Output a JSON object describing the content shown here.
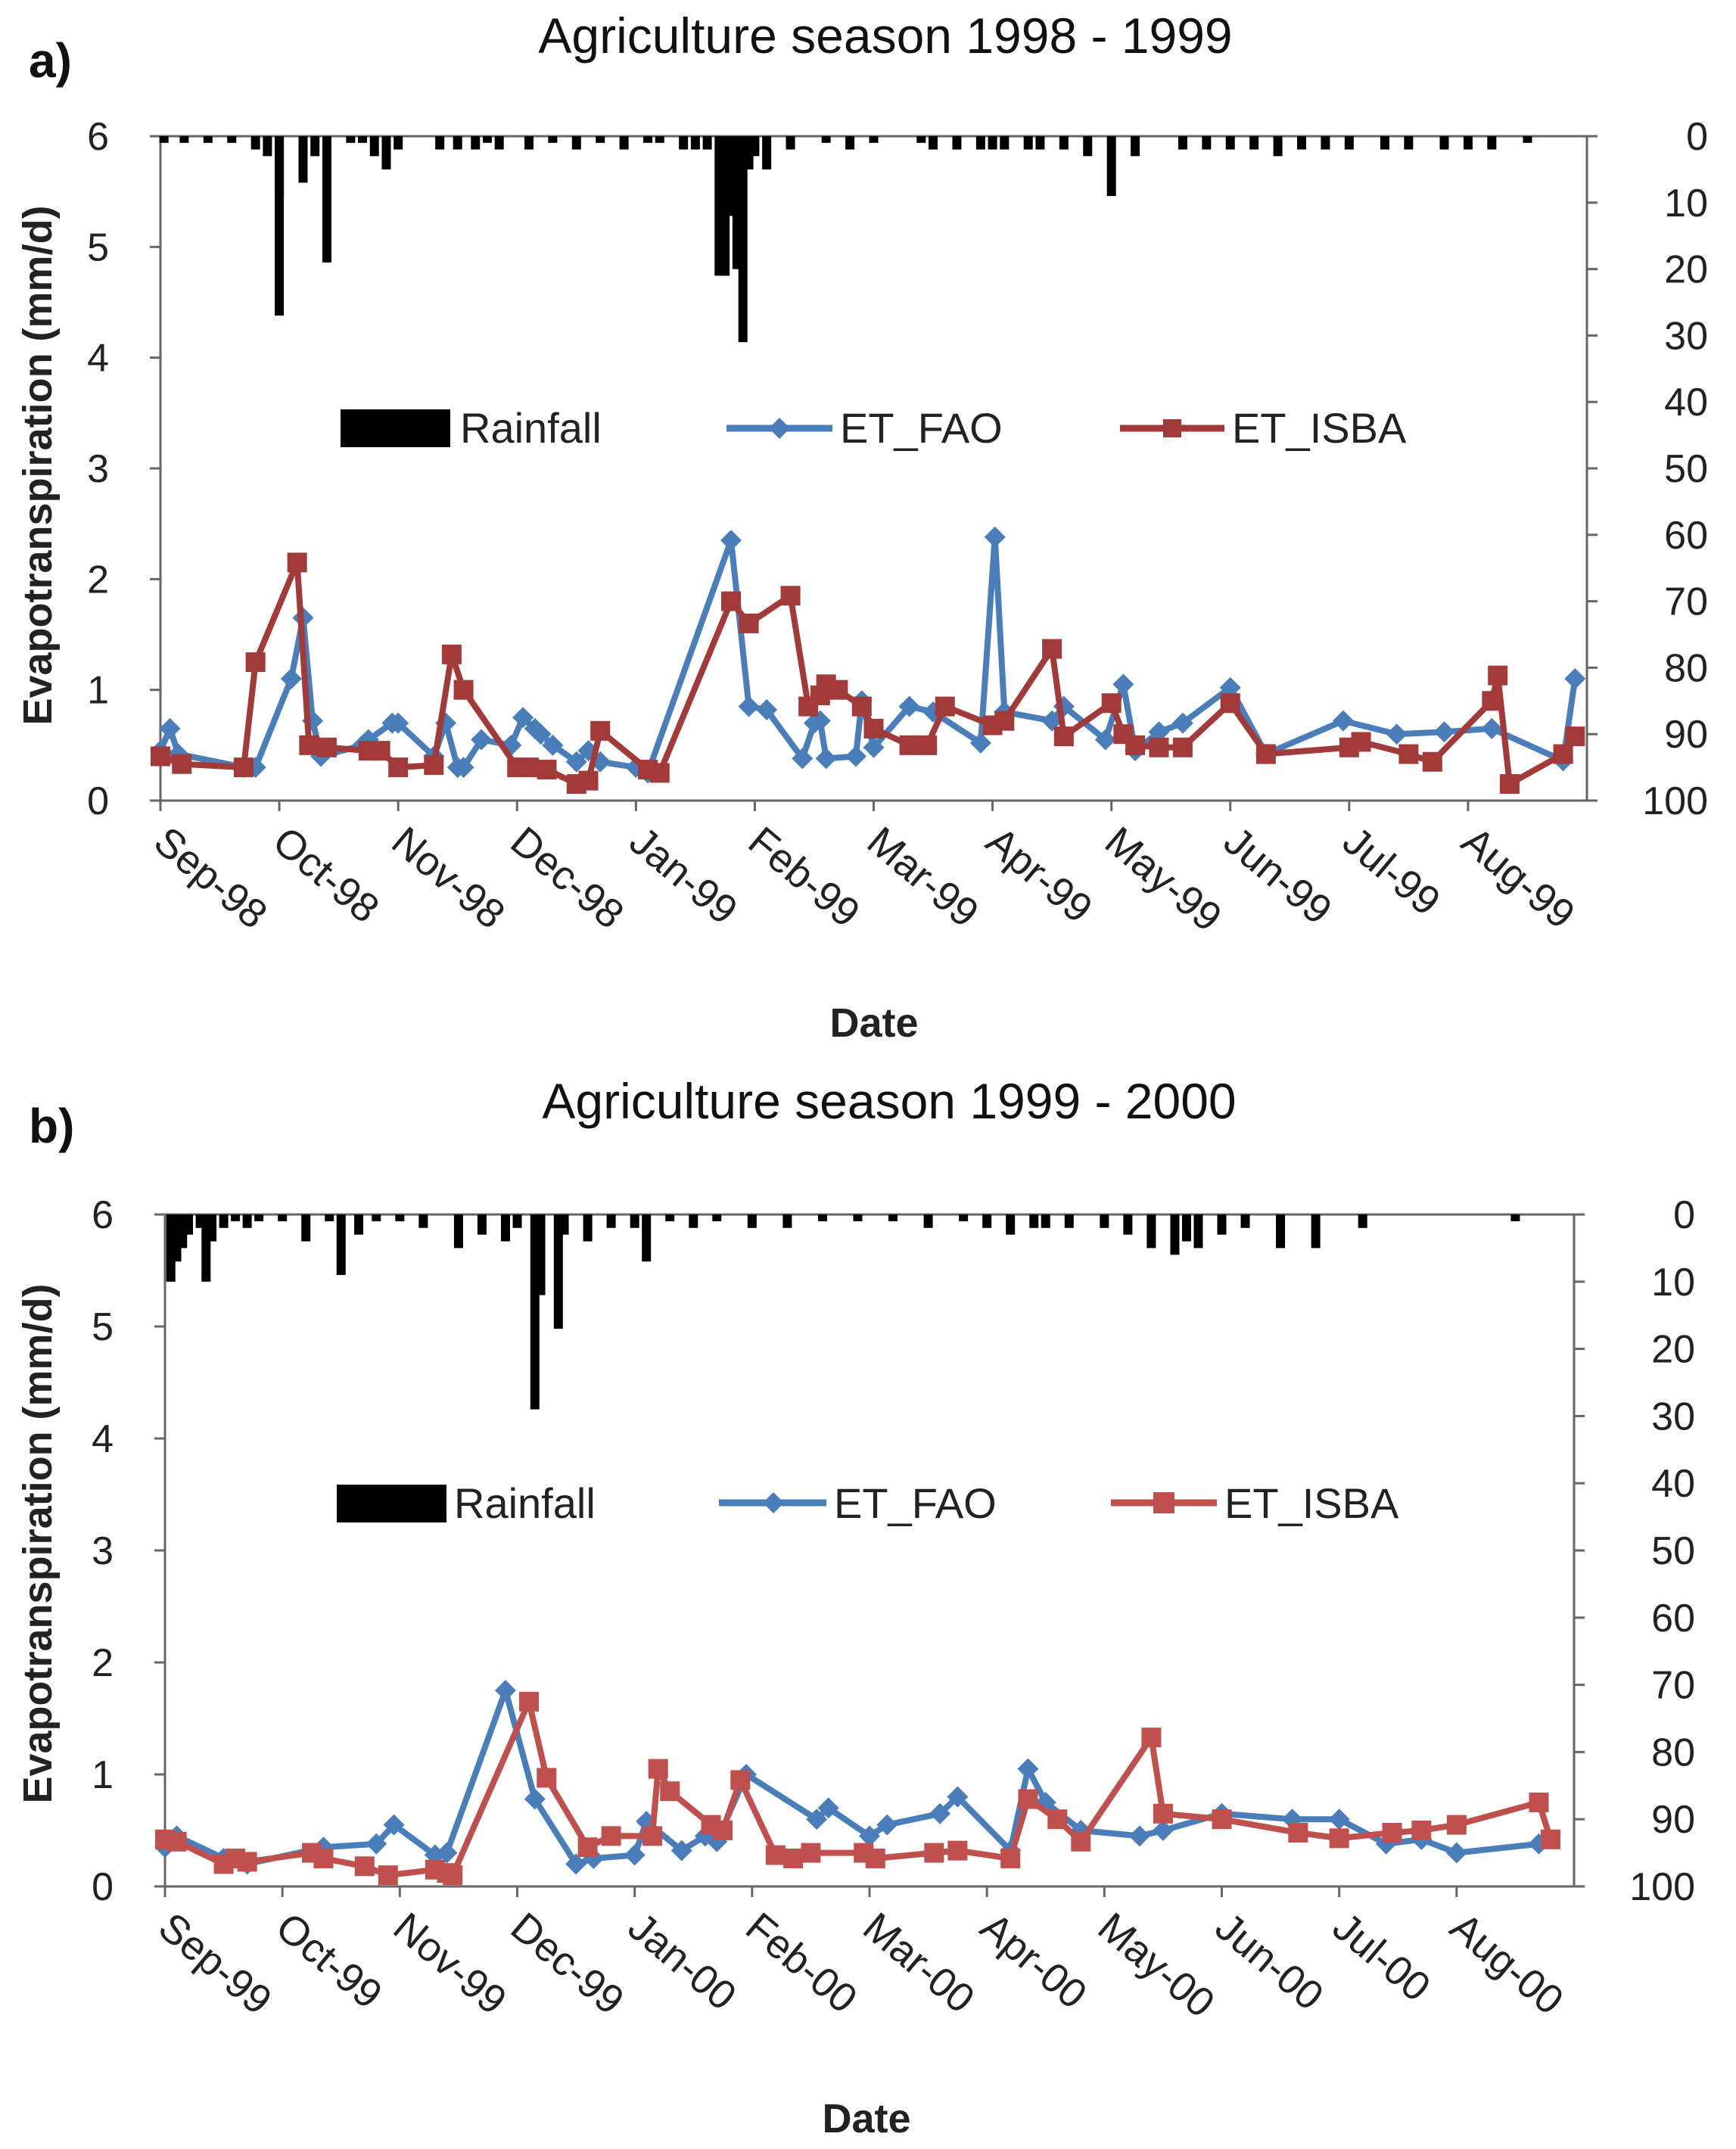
{
  "chart_data": [
    {
      "panel_label": "a)",
      "type": "line",
      "title": "Agriculture season 1998 - 1999",
      "xlabel": "Date",
      "ylabel": "Evapotranspiration (mm/d)",
      "ylim": [
        0,
        6
      ],
      "y_ticks": [
        "0",
        "1",
        "2",
        "3",
        "4",
        "5",
        "6"
      ],
      "y2lim": [
        0,
        100
      ],
      "y2_inverted": true,
      "y2_ticks": [
        "0",
        "10",
        "20",
        "30",
        "40",
        "50",
        "60",
        "70",
        "80",
        "90",
        "100"
      ],
      "xlim": [
        0,
        12
      ],
      "x_tick_labels": [
        "Sep-98",
        "Oct-98",
        "Nov-98",
        "Dec-98",
        "Jan-99",
        "Feb-99",
        "Mar-99",
        "Apr-99",
        "May-99",
        "Jun-99",
        "Jul-99",
        "Aug-99"
      ],
      "legend": [
        "Rainfall",
        "ET_FAO",
        "ET_ISBA"
      ],
      "colors": {
        "rainfall": "#000000",
        "ET_FAO": "#4a7ebb",
        "ET_ISBA": "#a33a3a"
      },
      "rainfall": {
        "x": [
          0.03,
          0.2,
          0.4,
          0.6,
          0.8,
          0.9,
          1.0,
          1.3,
          1.0,
          1.2,
          1.4,
          1.6,
          1.7,
          1.8,
          1.9,
          2.0,
          2.35,
          2.5,
          2.65,
          2.75,
          2.85,
          3.1,
          3.3,
          3.5,
          3.7,
          3.9,
          4.1,
          4.2,
          4.4,
          4.5,
          4.6,
          4.7,
          4.75,
          4.8,
          4.85,
          4.9,
          4.95,
          5.0,
          5.1,
          5.3,
          5.6,
          5.8,
          6.0,
          6.4,
          6.5,
          6.7,
          6.9,
          7.0,
          7.1,
          7.3,
          7.4,
          7.6,
          7.8,
          8.0,
          8.2,
          8.6,
          8.8,
          9.0,
          9.2,
          9.4,
          9.6,
          9.8,
          10.0,
          10.3,
          10.5,
          10.8,
          11.0,
          11.2,
          11.5
        ],
        "values": [
          1,
          1,
          1,
          1,
          2,
          3,
          27,
          3,
          9,
          7,
          19,
          1,
          1,
          3,
          5,
          2,
          2,
          2,
          2,
          1,
          2,
          2,
          1,
          2,
          1,
          2,
          1,
          1,
          2,
          2,
          2,
          21,
          21,
          12,
          20,
          31,
          5,
          3,
          5,
          2,
          1,
          2,
          1,
          1,
          2,
          2,
          2,
          2,
          2,
          2,
          2,
          2,
          3,
          9,
          3,
          2,
          2,
          2,
          2,
          3,
          2,
          2,
          2,
          2,
          2,
          2,
          2,
          2,
          1
        ]
      },
      "series": [
        {
          "name": "ET_FAO",
          "x": [
            0.0,
            0.08,
            0.15,
            0.7,
            0.8,
            1.1,
            1.2,
            1.28,
            1.35,
            1.7,
            1.75,
            1.95,
            2.0,
            2.3,
            2.4,
            2.5,
            2.55,
            2.7,
            2.95,
            3.05,
            3.15,
            3.2,
            3.3,
            3.5,
            3.6,
            3.7,
            4.0,
            4.1,
            4.8,
            4.95,
            5.1,
            5.4,
            5.5,
            5.55,
            5.6,
            5.85,
            5.9,
            6.0,
            6.3,
            6.5,
            6.9,
            7.02,
            7.1,
            7.5,
            7.6,
            7.95,
            8.1,
            8.2,
            8.4,
            8.6,
            9.0,
            9.3,
            9.95,
            10.4,
            10.8,
            11.2,
            11.8,
            11.9
          ],
          "values": [
            0.45,
            0.65,
            0.42,
            0.3,
            0.3,
            1.1,
            1.65,
            0.72,
            0.4,
            0.5,
            0.55,
            0.7,
            0.7,
            0.4,
            0.7,
            0.3,
            0.3,
            0.55,
            0.5,
            0.75,
            0.65,
            0.6,
            0.5,
            0.35,
            0.45,
            0.35,
            0.3,
            0.25,
            2.35,
            0.85,
            0.82,
            0.38,
            0.7,
            0.72,
            0.38,
            0.4,
            0.9,
            0.48,
            0.85,
            0.8,
            0.52,
            2.38,
            0.8,
            0.72,
            0.85,
            0.55,
            1.05,
            0.45,
            0.62,
            0.7,
            1.02,
            0.42,
            0.72,
            0.6,
            0.62,
            0.65,
            0.36,
            1.1
          ]
        },
        {
          "name": "ET_ISBA",
          "x": [
            0.0,
            0.18,
            0.7,
            0.8,
            1.15,
            1.25,
            1.4,
            1.75,
            1.85,
            2.0,
            2.3,
            2.45,
            2.55,
            3.0,
            3.1,
            3.25,
            3.5,
            3.6,
            3.7,
            4.1,
            4.2,
            4.8,
            4.95,
            5.3,
            5.45,
            5.55,
            5.6,
            5.7,
            5.9,
            6.0,
            6.3,
            6.45,
            6.6,
            7.0,
            7.1,
            7.5,
            7.6,
            8.0,
            8.1,
            8.2,
            8.4,
            8.6,
            9.0,
            9.3,
            10.0,
            10.1,
            10.5,
            10.7,
            11.2,
            11.25,
            11.35,
            11.8,
            11.9
          ],
          "values": [
            0.4,
            0.33,
            0.3,
            1.25,
            2.15,
            0.5,
            0.48,
            0.45,
            0.45,
            0.3,
            0.32,
            1.32,
            1.0,
            0.3,
            0.3,
            0.28,
            0.15,
            0.18,
            0.63,
            0.28,
            0.25,
            1.8,
            1.6,
            1.85,
            0.85,
            0.95,
            1.05,
            1.0,
            0.85,
            0.65,
            0.5,
            0.5,
            0.85,
            0.68,
            0.72,
            1.37,
            0.58,
            0.88,
            0.6,
            0.5,
            0.48,
            0.48,
            0.88,
            0.42,
            0.48,
            0.53,
            0.42,
            0.35,
            0.9,
            1.13,
            0.15,
            0.42,
            0.58
          ]
        }
      ]
    },
    {
      "panel_label": "b)",
      "type": "line",
      "title": "Agriculture season 1999 - 2000",
      "xlabel": "Date",
      "ylabel": "Evapotranspiration (mm/d)",
      "ylim": [
        0,
        6
      ],
      "y_ticks": [
        "0",
        "1",
        "2",
        "3",
        "4",
        "5",
        "6"
      ],
      "y2lim": [
        0,
        100
      ],
      "y2_inverted": true,
      "y2_ticks": [
        "0",
        "10",
        "20",
        "30",
        "40",
        "50",
        "60",
        "70",
        "80",
        "90",
        "100"
      ],
      "xlim": [
        0,
        12
      ],
      "x_tick_labels": [
        "Sep-99",
        "Oct-99",
        "Nov-99",
        "Dec-99",
        "Jan-00",
        "Feb-00",
        "Mar-00",
        "Apr-00",
        "May-00",
        "Jun-00",
        "Jul-00",
        "Aug-00"
      ],
      "legend": [
        "Rainfall",
        "ET_FAO",
        "ET_ISBA"
      ],
      "colors": {
        "rainfall": "#000000",
        "ET_FAO": "#4a7ebb",
        "ET_ISBA": "#c0504d"
      },
      "rainfall": {
        "x": [
          0.05,
          0.1,
          0.15,
          0.2,
          0.3,
          0.35,
          0.4,
          0.5,
          0.6,
          0.7,
          0.8,
          1.0,
          1.2,
          1.4,
          1.5,
          1.65,
          1.8,
          2.0,
          2.2,
          2.5,
          2.7,
          2.9,
          3.0,
          3.15,
          3.2,
          3.35,
          3.4,
          3.6,
          3.8,
          4.0,
          4.1,
          4.3,
          4.5,
          4.7,
          5.0,
          5.3,
          5.6,
          5.9,
          6.2,
          6.5,
          6.8,
          7.0,
          7.2,
          7.4,
          7.5,
          7.7,
          8.0,
          8.2,
          8.4,
          8.6,
          8.7,
          8.8,
          9.0,
          9.2,
          9.5,
          9.8,
          10.2,
          11.5
        ],
        "values": [
          10,
          7,
          5,
          3,
          2,
          10,
          4,
          2,
          1,
          2,
          1,
          1,
          4,
          1,
          9,
          3,
          1,
          1,
          2,
          5,
          3,
          4,
          2,
          29,
          12,
          17,
          3,
          4,
          2,
          2,
          7,
          1,
          2,
          1,
          2,
          2,
          1,
          1,
          1,
          2,
          1,
          2,
          3,
          2,
          2,
          2,
          2,
          3,
          5,
          6,
          4,
          5,
          3,
          2,
          5,
          5,
          2,
          1
        ]
      },
      "series": [
        {
          "name": "ET_FAO",
          "x": [
            0.0,
            0.1,
            0.5,
            0.7,
            1.35,
            1.8,
            1.95,
            2.3,
            2.4,
            2.9,
            3.15,
            3.5,
            3.65,
            4.0,
            4.1,
            4.4,
            4.6,
            4.7,
            4.95,
            5.55,
            5.65,
            6.0,
            6.15,
            6.6,
            6.75,
            7.2,
            7.35,
            7.5,
            7.8,
            8.3,
            8.5,
            9.0,
            9.6,
            10.0,
            10.4,
            10.7,
            11.0,
            11.7
          ],
          "values": [
            0.35,
            0.45,
            0.25,
            0.2,
            0.35,
            0.38,
            0.55,
            0.28,
            0.3,
            1.75,
            0.78,
            0.2,
            0.25,
            0.28,
            0.58,
            0.32,
            0.45,
            0.4,
            1.0,
            0.6,
            0.7,
            0.45,
            0.55,
            0.65,
            0.8,
            0.32,
            1.05,
            0.75,
            0.5,
            0.45,
            0.5,
            0.65,
            0.6,
            0.6,
            0.38,
            0.42,
            0.3,
            0.38
          ]
        },
        {
          "name": "ET_ISBA",
          "x": [
            0.0,
            0.1,
            0.5,
            0.6,
            0.7,
            1.25,
            1.35,
            1.7,
            1.9,
            2.3,
            2.4,
            2.45,
            3.1,
            3.25,
            3.6,
            3.8,
            4.15,
            4.2,
            4.3,
            4.65,
            4.75,
            4.9,
            5.2,
            5.35,
            5.5,
            5.95,
            6.05,
            6.55,
            6.75,
            7.2,
            7.35,
            7.6,
            7.8,
            8.4,
            8.5,
            9.0,
            9.65,
            10.0,
            10.45,
            10.7,
            11.0,
            11.7,
            11.8
          ],
          "values": [
            0.42,
            0.4,
            0.2,
            0.25,
            0.22,
            0.3,
            0.25,
            0.18,
            0.1,
            0.15,
            0.12,
            0.1,
            1.65,
            0.97,
            0.35,
            0.45,
            0.45,
            1.05,
            0.85,
            0.55,
            0.5,
            0.95,
            0.28,
            0.25,
            0.3,
            0.3,
            0.25,
            0.3,
            0.32,
            0.25,
            0.78,
            0.6,
            0.4,
            1.33,
            0.65,
            0.6,
            0.48,
            0.43,
            0.48,
            0.5,
            0.55,
            0.75,
            0.42
          ]
        }
      ]
    }
  ]
}
